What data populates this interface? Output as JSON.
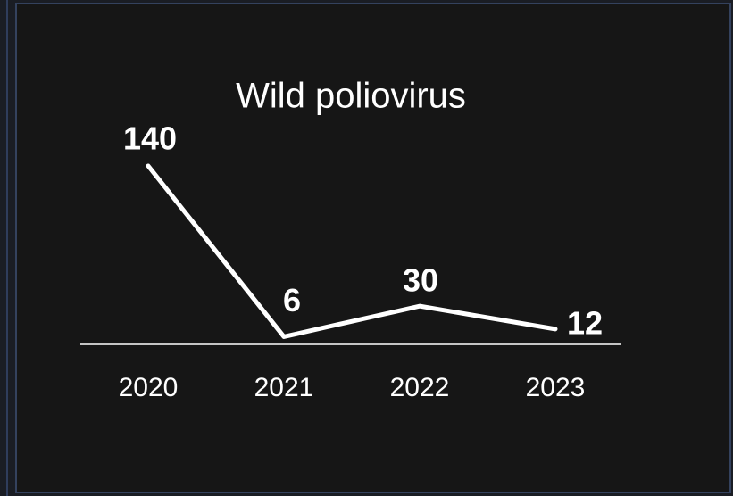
{
  "chart_data": {
    "type": "line",
    "title": "Wild poliovirus",
    "categories": [
      "2020",
      "2021",
      "2022",
      "2023"
    ],
    "values": [
      140,
      6,
      30,
      12
    ],
    "color": "#ffffff",
    "ylim": [
      0,
      140
    ]
  }
}
